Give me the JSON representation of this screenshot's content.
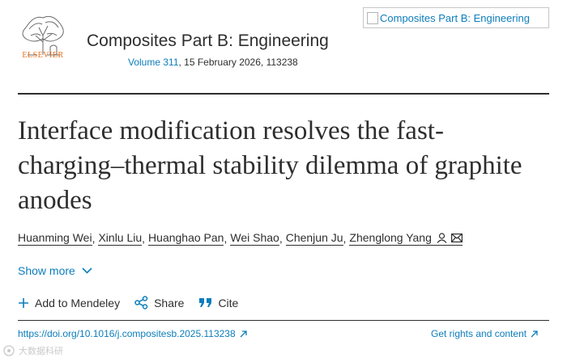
{
  "publisher": {
    "name": "ELSEVIER"
  },
  "journal": {
    "title": "Composites Part B: Engineering",
    "volume_link": "Volume 311",
    "meta_rest": ", 15 February 2026, 113238",
    "cover_alt": "Composites Part B: Engineering"
  },
  "article": {
    "title": "Interface modification resolves the fast-charging–thermal stability dilemma of graphite anodes",
    "authors": [
      "Huanming Wei",
      "Xinlu Liu",
      "Huanghao Pan",
      "Wei Shao",
      "Chenjun Ju",
      "Zhenglong Yang"
    ],
    "show_more": "Show more"
  },
  "actions": {
    "mendeley": "Add to Mendeley",
    "share": "Share",
    "cite": "Cite"
  },
  "links": {
    "doi": "https://doi.org/10.1016/j.compositesb.2025.113238",
    "rights": "Get rights and content"
  },
  "watermark": {
    "text": "大数据科研"
  },
  "colors": {
    "link": "#0c7dbb",
    "text": "#2e2e2e",
    "publisher_orange": "#e9711c"
  },
  "icons": [
    "elsevier-tree-logo",
    "person-icon",
    "mail-icon",
    "chevron-down-icon",
    "plus-icon",
    "share-icon",
    "quote-icon",
    "external-link-icon"
  ]
}
